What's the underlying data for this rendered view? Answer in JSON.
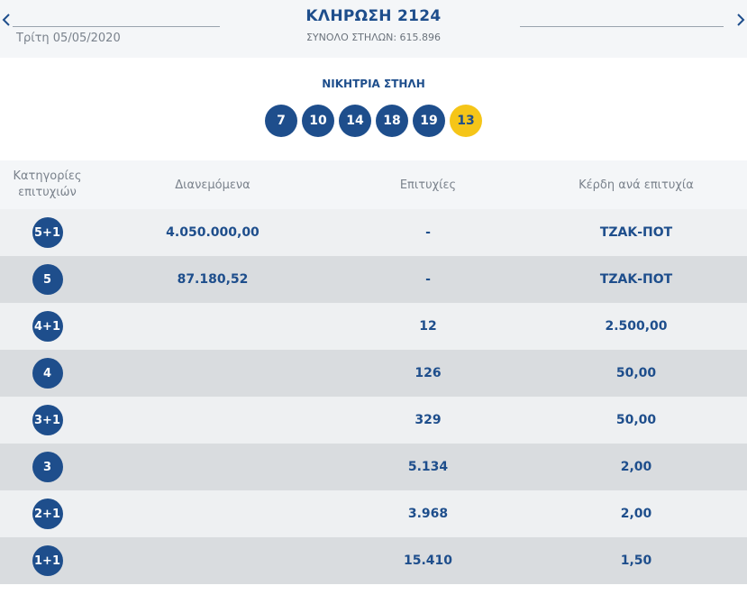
{
  "header": {
    "draw_title": "ΚΛΗΡΩΣΗ 2124",
    "date": "Τρίτη 05/05/2020",
    "total_columns": "ΣΥΝΟΛΟ ΣΤΗΛΩΝ: 615.896",
    "prev_icon": "chevron-left-icon",
    "next_icon": "chevron-right-icon"
  },
  "winning": {
    "label": "ΝΙΚΗΤΡΙΑ ΣΤΗΛΗ",
    "numbers": [
      "7",
      "10",
      "14",
      "18",
      "19"
    ],
    "joker": "13",
    "colors": {
      "ball": "#1e4e8c",
      "joker": "#f5c518"
    }
  },
  "table": {
    "headers": {
      "category": "Κατηγορίες επιτυχιών",
      "distributed": "Διανεμόμενα",
      "winners": "Επιτυχίες",
      "prize": "Κέρδη ανά επιτυχία"
    },
    "rows": [
      {
        "category": "5+1",
        "distributed": "4.050.000,00",
        "winners": "-",
        "prize": "ΤΖΑΚ-ΠΟΤ"
      },
      {
        "category": "5",
        "distributed": "87.180,52",
        "winners": "-",
        "prize": "ΤΖΑΚ-ΠΟΤ"
      },
      {
        "category": "4+1",
        "distributed": "",
        "winners": "12",
        "prize": "2.500,00"
      },
      {
        "category": "4",
        "distributed": "",
        "winners": "126",
        "prize": "50,00"
      },
      {
        "category": "3+1",
        "distributed": "",
        "winners": "329",
        "prize": "50,00"
      },
      {
        "category": "3",
        "distributed": "",
        "winners": "5.134",
        "prize": "2,00"
      },
      {
        "category": "2+1",
        "distributed": "",
        "winners": "3.968",
        "prize": "2,00"
      },
      {
        "category": "1+1",
        "distributed": "",
        "winners": "15.410",
        "prize": "1,50"
      }
    ]
  }
}
